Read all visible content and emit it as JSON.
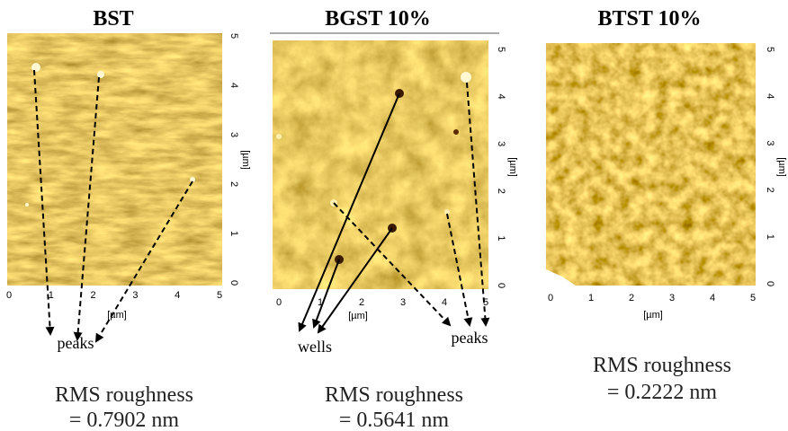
{
  "panels": [
    {
      "title": "BST",
      "xticks": [
        0,
        1,
        2,
        3,
        4,
        5
      ],
      "yticks": [
        0,
        1,
        2,
        3,
        4,
        5
      ],
      "x_unit": "[µm]",
      "y_unit": "[µm]",
      "annotations": [
        "peaks"
      ],
      "roughness": [
        "RMS roughness",
        "= 0.7902 nm"
      ]
    },
    {
      "title": "BGST 10%",
      "xticks": [
        0,
        1,
        2,
        3,
        4,
        5
      ],
      "yticks": [
        0,
        1,
        2,
        3,
        4,
        5
      ],
      "x_unit": "[µm]",
      "y_unit": "[µm]",
      "annotations": [
        "wells",
        "peaks"
      ],
      "roughness": [
        "RMS roughness",
        "= 0.5641 nm"
      ]
    },
    {
      "title": "BTST 10%",
      "xticks": [
        0,
        1,
        2,
        3,
        4,
        5
      ],
      "yticks": [
        0,
        1,
        2,
        3,
        4,
        5
      ],
      "x_unit": "[µm]",
      "y_unit": "[µm]",
      "annotations": [],
      "roughness": [
        "RMS roughness",
        "= 0.2222 nm"
      ]
    }
  ]
}
